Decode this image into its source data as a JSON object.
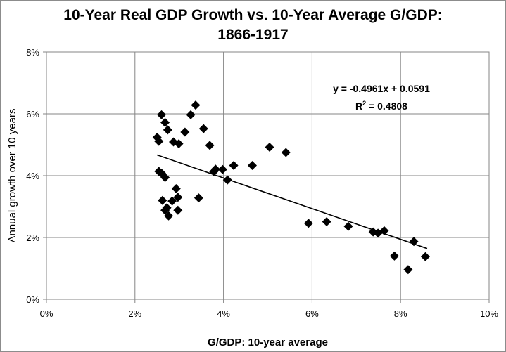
{
  "chart_data": {
    "type": "scatter",
    "title_line1": "10-Year Real GDP Growth vs. 10-Year Average G/GDP:",
    "title_line2": "1866-1917",
    "xlabel": "G/GDP: 10-year average",
    "ylabel": "Annual growth over 10 years",
    "xlim": [
      0,
      0.1
    ],
    "ylim": [
      0,
      0.08
    ],
    "x_ticks": [
      0,
      0.02,
      0.04,
      0.06,
      0.08,
      0.1
    ],
    "x_tick_labels": [
      "0%",
      "2%",
      "4%",
      "6%",
      "8%",
      "10%"
    ],
    "y_ticks": [
      0,
      0.02,
      0.04,
      0.06,
      0.08
    ],
    "y_tick_labels": [
      "0%",
      "2%",
      "4%",
      "6%",
      "8%"
    ],
    "grid": true,
    "marker": "diamond",
    "points": [
      [
        0.025,
        0.0524
      ],
      [
        0.0254,
        0.0511
      ],
      [
        0.026,
        0.0597
      ],
      [
        0.0268,
        0.0572
      ],
      [
        0.0274,
        0.0548
      ],
      [
        0.0287,
        0.0509
      ],
      [
        0.0299,
        0.0503
      ],
      [
        0.0313,
        0.0541
      ],
      [
        0.0326,
        0.0597
      ],
      [
        0.0337,
        0.0628
      ],
      [
        0.0355,
        0.0552
      ],
      [
        0.0369,
        0.0498
      ],
      [
        0.0254,
        0.0414
      ],
      [
        0.026,
        0.0408
      ],
      [
        0.0268,
        0.0394
      ],
      [
        0.0262,
        0.032
      ],
      [
        0.0268,
        0.0288
      ],
      [
        0.0272,
        0.0296
      ],
      [
        0.0276,
        0.027
      ],
      [
        0.0284,
        0.0318
      ],
      [
        0.0293,
        0.0358
      ],
      [
        0.0297,
        0.033
      ],
      [
        0.0297,
        0.0288
      ],
      [
        0.0344,
        0.0328
      ],
      [
        0.0378,
        0.0413
      ],
      [
        0.0382,
        0.0421
      ],
      [
        0.0398,
        0.042
      ],
      [
        0.0409,
        0.0386
      ],
      [
        0.0423,
        0.0433
      ],
      [
        0.0465,
        0.0433
      ],
      [
        0.0504,
        0.0492
      ],
      [
        0.0541,
        0.0475
      ],
      [
        0.0592,
        0.0246
      ],
      [
        0.0633,
        0.0251
      ],
      [
        0.0682,
        0.0236
      ],
      [
        0.0738,
        0.0218
      ],
      [
        0.0749,
        0.0214
      ],
      [
        0.0763,
        0.0222
      ],
      [
        0.0786,
        0.014
      ],
      [
        0.0817,
        0.0096
      ],
      [
        0.083,
        0.0187
      ],
      [
        0.0856,
        0.0138
      ]
    ],
    "trendline": {
      "slope": -0.4961,
      "intercept": 0.0591,
      "x_range": [
        0.025,
        0.086
      ]
    },
    "equation_text": "y = -0.4961x + 0.0591",
    "r2_prefix": "R",
    "r2_sup": "2",
    "r2_suffix": " = 0.4808"
  }
}
